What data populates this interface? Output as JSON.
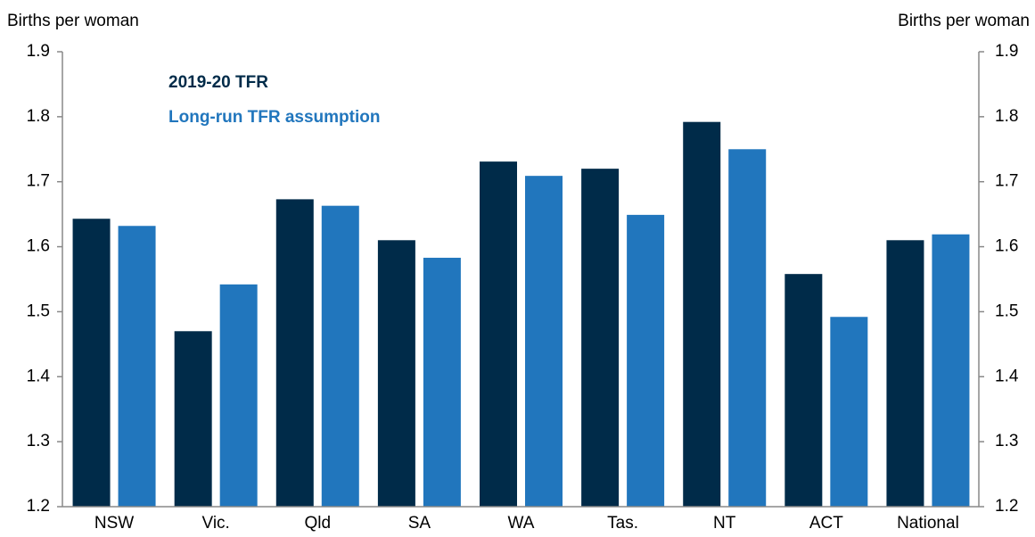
{
  "chart_data": {
    "type": "bar",
    "ylabel": "Births per woman",
    "y2label": "Births per woman",
    "categories": [
      "NSW",
      "Vic.",
      "Qld",
      "SA",
      "WA",
      "Tas.",
      "NT",
      "ACT",
      "National"
    ],
    "series": [
      {
        "name": "2019-20 TFR",
        "color": "#002b49",
        "values": [
          1.643,
          1.47,
          1.673,
          1.61,
          1.731,
          1.72,
          1.792,
          1.558,
          1.61
        ]
      },
      {
        "name": "Long-run TFR assumption",
        "color": "#2176bd",
        "values": [
          1.632,
          1.542,
          1.663,
          1.583,
          1.709,
          1.649,
          1.75,
          1.492,
          1.619
        ]
      }
    ],
    "ylim": [
      1.2,
      1.9
    ],
    "yticks": [
      1.2,
      1.3,
      1.4,
      1.5,
      1.6,
      1.7,
      1.8,
      1.9
    ],
    "y2lim": [
      1.2,
      1.9
    ],
    "y2ticks": [
      1.2,
      1.3,
      1.4,
      1.5,
      1.6,
      1.7,
      1.8,
      1.9
    ],
    "legend": "top-left"
  }
}
